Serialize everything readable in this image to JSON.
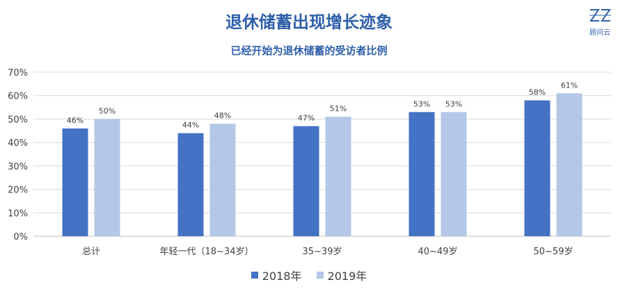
{
  "header": {
    "title": "退休储蓄出现增长迹象",
    "subtitle": "已经开始为退休储蓄的受访者比例"
  },
  "logo": {
    "text": "顾问云",
    "icon": "zs-logo-icon",
    "color": "#2f5faa"
  },
  "chart_data": {
    "type": "bar",
    "title": "退休储蓄出现增长迹象",
    "subtitle": "已经开始为退休储蓄的受访者比例",
    "categories": [
      "总计",
      "年轻一代（18~34岁）",
      "35~39岁",
      "40~49岁",
      "50~59岁"
    ],
    "series": [
      {
        "name": "2018年",
        "values": [
          46,
          44,
          47,
          53,
          58
        ],
        "color": "#4472c4"
      },
      {
        "name": "2019年",
        "values": [
          50,
          48,
          51,
          53,
          61
        ],
        "color": "#b4c7e7"
      }
    ],
    "ylim": [
      0,
      70
    ],
    "yticks": [
      0,
      10,
      20,
      30,
      40,
      50,
      60,
      70
    ],
    "ytick_format": "percent",
    "grid": true,
    "legend": "bottom",
    "xlabel": "",
    "ylabel": ""
  }
}
